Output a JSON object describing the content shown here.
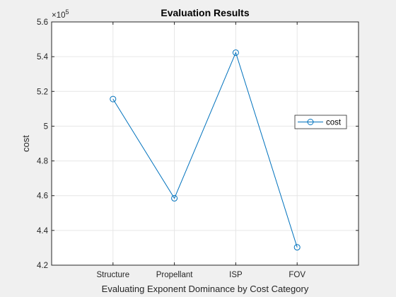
{
  "chart_data": {
    "type": "line",
    "title": "Evaluation Results",
    "xlabel": "Evaluating Exponent Dominance by Cost Category",
    "ylabel": "cost",
    "categories": [
      "Structure",
      "Propellant",
      "ISP",
      "FOV"
    ],
    "series": [
      {
        "name": "cost",
        "values": [
          515600,
          458500,
          542300,
          430300
        ],
        "color": "#0072bd",
        "marker": "circle"
      }
    ],
    "ylim": [
      420000,
      560000
    ],
    "yticks": [
      420000,
      440000,
      460000,
      480000,
      500000,
      520000,
      540000,
      560000
    ],
    "ytick_labels": [
      "4.2",
      "4.4",
      "4.6",
      "4.8",
      "5",
      "5.2",
      "5.4",
      "5.6"
    ],
    "y_exponent_base": "×10",
    "y_exponent": "5",
    "grid": true,
    "legend_position": "right",
    "legend": [
      "cost"
    ]
  },
  "colors": {
    "figure_bg": "#f0f0f0",
    "axes_bg": "#ffffff",
    "grid": "#e6e6e6",
    "axis": "#262626",
    "series": "#0072bd"
  }
}
